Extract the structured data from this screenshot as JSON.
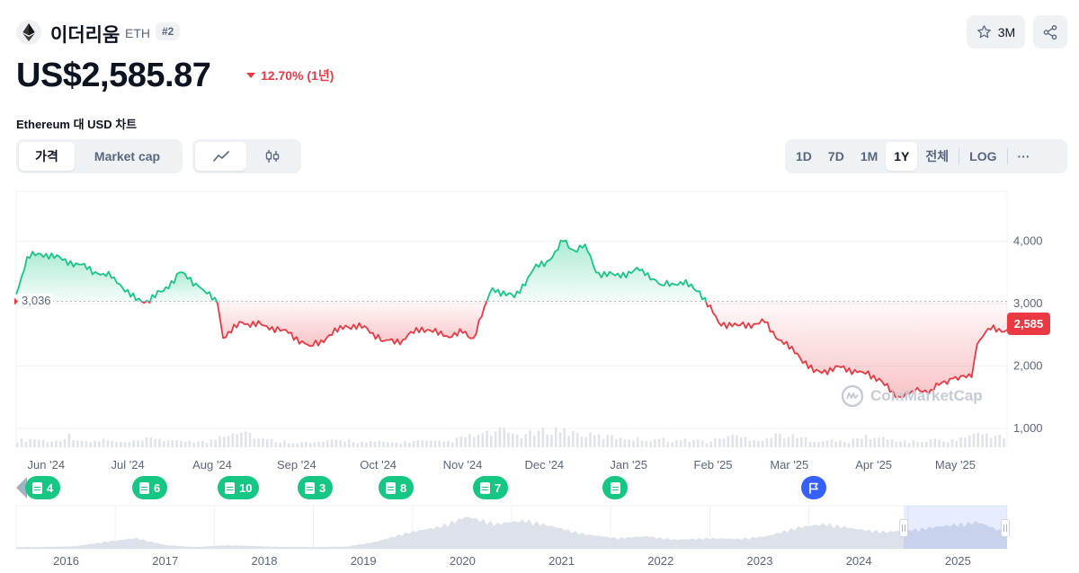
{
  "header": {
    "coin_name": "이더리움",
    "symbol": "ETH",
    "rank": "#2",
    "price": "US$2,585.87",
    "change": "12.70% (1년)",
    "change_direction": "down",
    "watchlist_count": "3M",
    "icons": {
      "logo": "ethereum-logo-icon",
      "star": "star-icon",
      "share": "share-icon"
    }
  },
  "chart_title": "Ethereum 대 USD 차트",
  "controls": {
    "metric_tabs": [
      "가격",
      "Market cap"
    ],
    "metric_active": "가격",
    "chart_type_icons": [
      "line-chart-icon",
      "candlestick-icon"
    ],
    "range_tabs": [
      "1D",
      "7D",
      "1M",
      "1Y",
      "전체"
    ],
    "range_active": "1Y",
    "log_label": "LOG",
    "more_label": "···"
  },
  "chart_data": {
    "type": "area",
    "y_ticks": [
      "4,000",
      "3,000",
      "2,000",
      "1,000"
    ],
    "ylim": [
      700,
      4800
    ],
    "reference_value": 3036,
    "reference_label": "3,036",
    "current_value": 2585,
    "current_label": "2,585",
    "colors": {
      "up": "#16c784",
      "down": "#ea3943"
    },
    "x_labels": [
      "Jun '24",
      "Jul '24",
      "Aug '24",
      "Sep '24",
      "Oct '24",
      "Nov '24",
      "Dec '24",
      "Jan '25",
      "Feb '25",
      "Mar '25",
      "Apr '25",
      "May '25"
    ],
    "x": [
      "2024-05-21",
      "2024-05-25",
      "2024-06-01",
      "2024-06-07",
      "2024-06-12",
      "2024-06-20",
      "2024-06-26",
      "2024-07-04",
      "2024-07-08",
      "2024-07-14",
      "2024-07-20",
      "2024-07-27",
      "2024-08-03",
      "2024-08-05",
      "2024-08-12",
      "2024-08-20",
      "2024-08-27",
      "2024-09-06",
      "2024-09-12",
      "2024-09-19",
      "2024-09-27",
      "2024-10-03",
      "2024-10-10",
      "2024-10-17",
      "2024-10-25",
      "2024-11-01",
      "2024-11-05",
      "2024-11-09",
      "2024-11-12",
      "2024-11-20",
      "2024-11-27",
      "2024-12-03",
      "2024-12-08",
      "2024-12-12",
      "2024-12-16",
      "2024-12-20",
      "2024-12-27",
      "2025-01-06",
      "2025-01-13",
      "2025-01-20",
      "2025-01-27",
      "2025-02-03",
      "2025-02-10",
      "2025-02-20",
      "2025-02-27",
      "2025-03-04",
      "2025-03-10",
      "2025-03-20",
      "2025-03-28",
      "2025-04-03",
      "2025-04-09",
      "2025-04-15",
      "2025-04-22",
      "2025-04-30",
      "2025-05-07",
      "2025-05-09",
      "2025-05-13",
      "2025-05-20"
    ],
    "values": [
      3150,
      3750,
      3800,
      3700,
      3650,
      3480,
      3420,
      3050,
      3050,
      3200,
      3500,
      3280,
      3000,
      2450,
      2700,
      2650,
      2580,
      2320,
      2450,
      2650,
      2600,
      2400,
      2420,
      2620,
      2480,
      2530,
      2450,
      2950,
      3250,
      3100,
      3550,
      3700,
      4000,
      3850,
      3950,
      3500,
      3450,
      3550,
      3300,
      3350,
      3200,
      2700,
      2650,
      2700,
      2350,
      2200,
      1900,
      1980,
      1900,
      1800,
      1500,
      1600,
      1620,
      1800,
      1820,
      2350,
      2600,
      2585
    ],
    "volume": [
      12,
      16,
      10,
      22,
      9,
      14,
      8,
      11,
      18,
      10,
      13,
      9,
      26,
      34,
      15,
      12,
      10,
      8,
      11,
      14,
      9,
      10,
      8,
      12,
      10,
      11,
      20,
      24,
      30,
      22,
      26,
      34,
      28,
      22,
      20,
      18,
      14,
      16,
      12,
      14,
      10,
      22,
      18,
      14,
      24,
      18,
      14,
      12,
      10,
      20,
      16,
      12,
      10,
      14,
      12,
      22,
      26,
      18
    ],
    "overview_years": [
      "2016",
      "2017",
      "2018",
      "2019",
      "2020",
      "2021",
      "2022",
      "2023",
      "2024",
      "2025"
    ],
    "overview_values": [
      10,
      10,
      15,
      40,
      60,
      20,
      10,
      20,
      15,
      10,
      10,
      12,
      40,
      90,
      120,
      180,
      140,
      160,
      120,
      80,
      60,
      70,
      50,
      60,
      55,
      70,
      120,
      140,
      110,
      95,
      110,
      130,
      150,
      90
    ]
  },
  "events": [
    {
      "type": "doc",
      "count": "4"
    },
    {
      "type": "doc",
      "count": "6"
    },
    {
      "type": "doc",
      "count": "10"
    },
    {
      "type": "doc",
      "count": "3"
    },
    {
      "type": "doc",
      "count": "8"
    },
    {
      "type": "doc",
      "count": "7"
    },
    {
      "type": "doc",
      "count": ""
    },
    {
      "type": "flag",
      "count": ""
    }
  ],
  "watermark": "CoinMarketCap"
}
